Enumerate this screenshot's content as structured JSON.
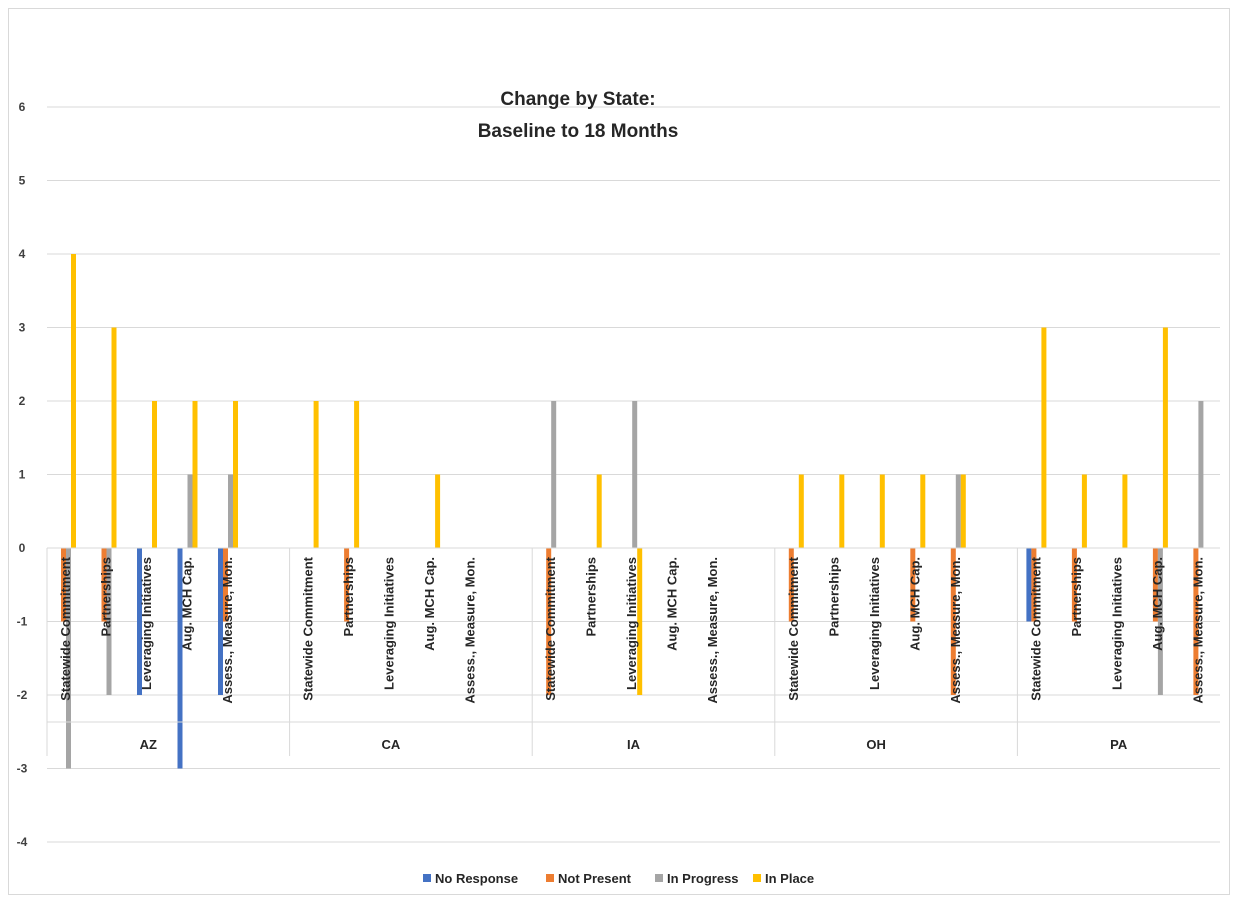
{
  "chart_data": {
    "type": "bar",
    "title": [
      "Change by State:",
      "Baseline to 18 Months"
    ],
    "ylim": [
      -4,
      6
    ],
    "yticks": [
      -4,
      -3,
      -2,
      -1,
      0,
      1,
      2,
      3,
      4,
      5,
      6
    ],
    "grid": true,
    "legend_position": "bottom",
    "groups": [
      "AZ",
      "CA",
      "IA",
      "OH",
      "PA"
    ],
    "categories": [
      "Statewide Commitment",
      "Partnerships",
      "Leveraging Initiatives",
      "Aug. MCH Cap.",
      "Assess., Measure, Mon."
    ],
    "series": [
      {
        "name": "No Response",
        "color": "#4472C4",
        "values": [
          [
            0,
            0,
            -2,
            -3,
            -2
          ],
          [
            0,
            0,
            0,
            0,
            0
          ],
          [
            0,
            0,
            0,
            0,
            0
          ],
          [
            0,
            0,
            0,
            0,
            0
          ],
          [
            -1,
            0,
            0,
            0,
            0
          ]
        ]
      },
      {
        "name": "Not Present",
        "color": "#ED7D31",
        "values": [
          [
            -1,
            -1,
            0,
            0,
            -1
          ],
          [
            0,
            -1,
            0,
            0,
            0
          ],
          [
            -2,
            0,
            0,
            0,
            0
          ],
          [
            -1,
            0,
            0,
            -1,
            -2
          ],
          [
            -1,
            -1,
            0,
            -1,
            -2
          ]
        ]
      },
      {
        "name": "In Progress",
        "color": "#A5A5A5",
        "values": [
          [
            -3,
            -2,
            0,
            1,
            1
          ],
          [
            0,
            0,
            0,
            0,
            0
          ],
          [
            2,
            0,
            2,
            0,
            0
          ],
          [
            0,
            0,
            0,
            0,
            1
          ],
          [
            0,
            0,
            0,
            -2,
            2
          ]
        ]
      },
      {
        "name": "In Place",
        "color": "#FFC000",
        "values": [
          [
            4,
            3,
            2,
            2,
            2
          ],
          [
            2,
            2,
            0,
            1,
            0
          ],
          [
            0,
            1,
            -2,
            0,
            0
          ],
          [
            1,
            1,
            1,
            1,
            1
          ],
          [
            3,
            1,
            1,
            3,
            0
          ]
        ]
      }
    ]
  }
}
